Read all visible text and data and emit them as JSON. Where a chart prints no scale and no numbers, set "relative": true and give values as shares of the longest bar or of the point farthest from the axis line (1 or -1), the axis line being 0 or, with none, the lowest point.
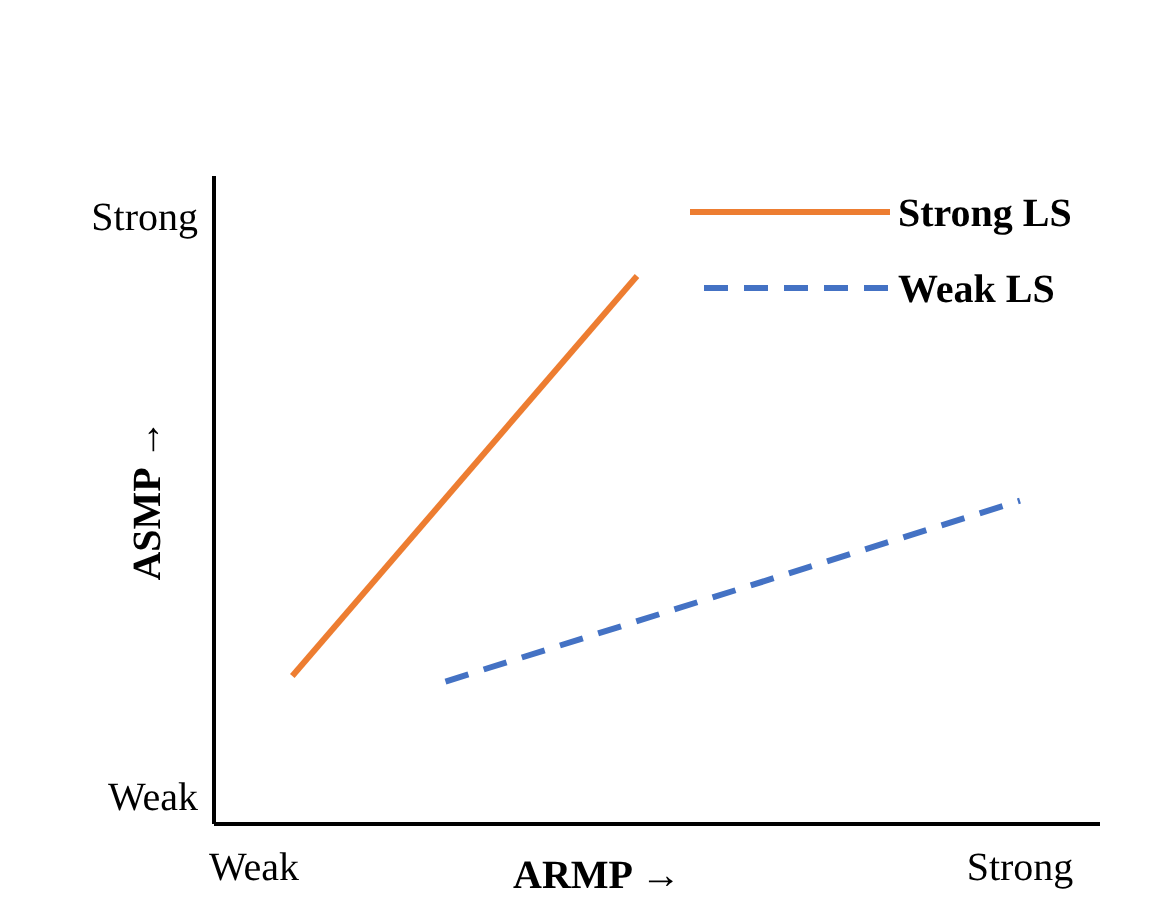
{
  "chart_data": {
    "type": "line",
    "xlabel": "ARMP →",
    "ylabel": "ASMP →",
    "relative": true,
    "categories": [
      "Weak",
      null,
      null,
      null,
      null,
      null,
      null,
      null,
      null,
      null,
      null,
      null,
      null,
      null,
      null,
      null,
      null,
      null,
      null,
      null,
      "Strong"
    ],
    "annotations": [
      "Strong",
      "Weak"
    ],
    "legend": "top right",
    "marker": "none",
    "series": [
      {
        "name": "Strong LS",
        "color": "#ed7d31",
        "line_style": "solid",
        "values": [
          null,
          0.27,
          null,
          null,
          null,
          null,
          null,
          null,
          null,
          null,
          1,
          null,
          null,
          null,
          null,
          null,
          null,
          null,
          null,
          null,
          null
        ]
      },
      {
        "name": "Weak LS",
        "color": "#4472c4",
        "line_style": "dashed",
        "values": [
          null,
          null,
          null,
          null,
          null,
          0.26,
          null,
          null,
          null,
          null,
          null,
          null,
          null,
          null,
          null,
          null,
          null,
          null,
          null,
          null,
          0.59
        ]
      }
    ]
  }
}
